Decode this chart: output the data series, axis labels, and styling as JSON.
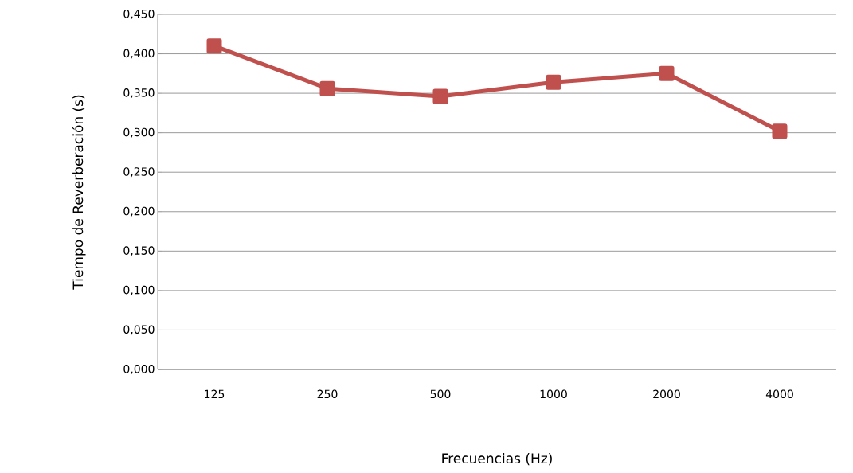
{
  "chart_data": {
    "type": "line",
    "xlabel": "Frecuencias (Hz)",
    "ylabel": "Tiempo de Reverberación (s)",
    "categories": [
      "125",
      "250",
      "500",
      "1000",
      "2000",
      "4000"
    ],
    "series": [
      {
        "color": "#c0504d",
        "values": [
          0.41,
          0.356,
          0.346,
          0.364,
          0.375,
          0.302
        ]
      }
    ],
    "ylim": [
      0,
      0.45
    ],
    "yticks": [
      {
        "value": 0,
        "label": "0,000"
      },
      {
        "value": 0.05,
        "label": "0,050"
      },
      {
        "value": 0.1,
        "label": "0,100"
      },
      {
        "value": 0.15,
        "label": "0,150"
      },
      {
        "value": 0.2,
        "label": "0,200"
      },
      {
        "value": 0.25,
        "label": "0,250"
      },
      {
        "value": 0.3,
        "label": "0,300"
      },
      {
        "value": 0.35,
        "label": "0,350"
      },
      {
        "value": 0.4,
        "label": "0,400"
      },
      {
        "value": 0.45,
        "label": "0,450"
      }
    ],
    "grid": "y",
    "marker": "square",
    "line_style": "solid"
  }
}
